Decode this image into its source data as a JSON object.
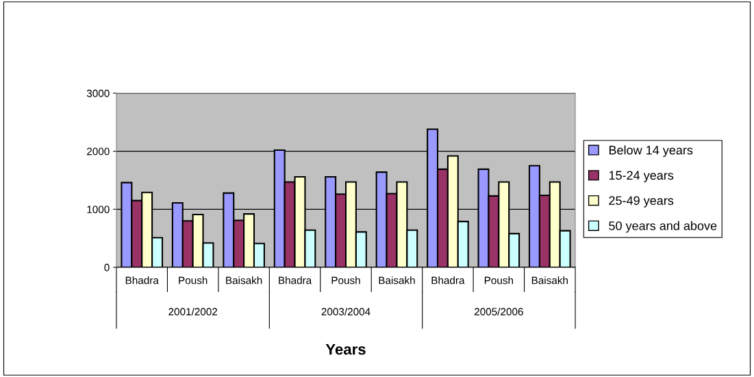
{
  "chart_data": {
    "type": "bar",
    "xlabel": "Years",
    "categories": [
      "Bhadra",
      "Poush",
      "Baisakh",
      "Bhadra",
      "Poush",
      "Baisakh",
      "Bhadra",
      "Poush",
      "Baisakh"
    ],
    "annotations": [
      "2001/2002",
      "2003/2004",
      "2005/2006"
    ],
    "series": [
      {
        "name": "Below 14 years",
        "color": "#9999ff",
        "values": [
          1460,
          1110,
          1280,
          2020,
          1560,
          1640,
          2380,
          1690,
          1750
        ]
      },
      {
        "name": "15-24 years",
        "color": "#993366",
        "values": [
          1150,
          800,
          810,
          1470,
          1260,
          1270,
          1690,
          1230,
          1240
        ]
      },
      {
        "name": "25-49 years",
        "color": "#ffffcc",
        "values": [
          1290,
          910,
          920,
          1560,
          1470,
          1470,
          1920,
          1470,
          1470
        ]
      },
      {
        "name": "50 years and above",
        "color": "#ccffff",
        "values": [
          510,
          420,
          410,
          640,
          610,
          640,
          790,
          580,
          630
        ]
      }
    ],
    "ylim": [
      0,
      3000
    ],
    "yticks": [
      0,
      1000,
      2000,
      3000
    ],
    "grid": "y",
    "legend": "right"
  }
}
